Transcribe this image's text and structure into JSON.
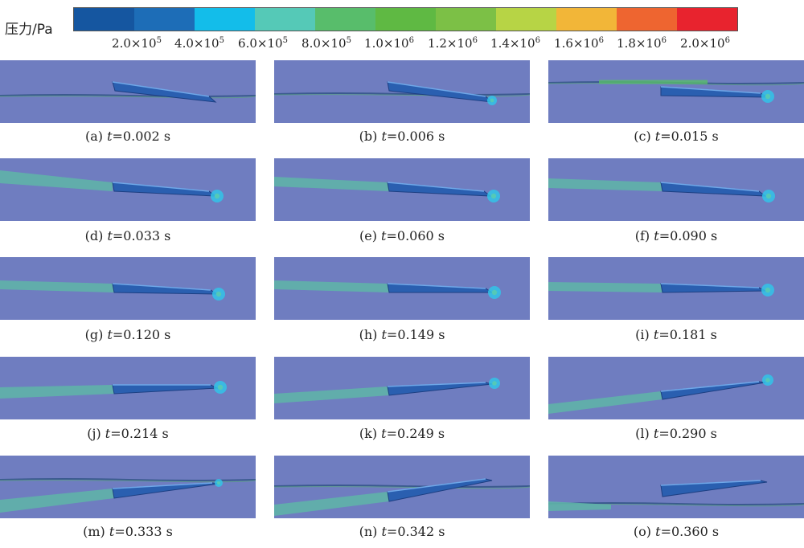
{
  "legend": {
    "title": "压力/Pa",
    "colors": [
      "#1556a0",
      "#1d6db7",
      "#13bdea",
      "#55c9b7",
      "#58bd6b",
      "#5fb943",
      "#7cc046",
      "#b7d445",
      "#f2b638",
      "#ee6530",
      "#e8232e"
    ],
    "ticks": [
      {
        "mantissa": "2.0×10",
        "exp": "5"
      },
      {
        "mantissa": "4.0×10",
        "exp": "5"
      },
      {
        "mantissa": "6.0×10",
        "exp": "5"
      },
      {
        "mantissa": "8.0×10",
        "exp": "5"
      },
      {
        "mantissa": "1.0×10",
        "exp": "6"
      },
      {
        "mantissa": "1.2×10",
        "exp": "6"
      },
      {
        "mantissa": "1.4×10",
        "exp": "6"
      },
      {
        "mantissa": "1.6×10",
        "exp": "6"
      },
      {
        "mantissa": "1.8×10",
        "exp": "6"
      },
      {
        "mantissa": "2.0×10",
        "exp": "6"
      }
    ]
  },
  "panels": [
    {
      "label": "(a)",
      "time": "0.002 s"
    },
    {
      "label": "(b)",
      "time": "0.006 s"
    },
    {
      "label": "(c)",
      "time": "0.015 s"
    },
    {
      "label": "(d)",
      "time": "0.033 s"
    },
    {
      "label": "(e)",
      "time": "0.060 s"
    },
    {
      "label": "(f)",
      "time": "0.090 s"
    },
    {
      "label": "(g)",
      "time": "0.120 s"
    },
    {
      "label": "(h)",
      "time": "0.149 s"
    },
    {
      "label": "(i)",
      "time": "0.181 s"
    },
    {
      "label": "(j)",
      "time": "0.214 s"
    },
    {
      "label": "(k)",
      "time": "0.249 s"
    },
    {
      "label": "(l)",
      "time": "0.290 s"
    },
    {
      "label": "(m)",
      "time": "0.333 s"
    },
    {
      "label": "(n)",
      "time": "0.342 s"
    },
    {
      "label": "(o)",
      "time": "0.360 s"
    }
  ]
}
